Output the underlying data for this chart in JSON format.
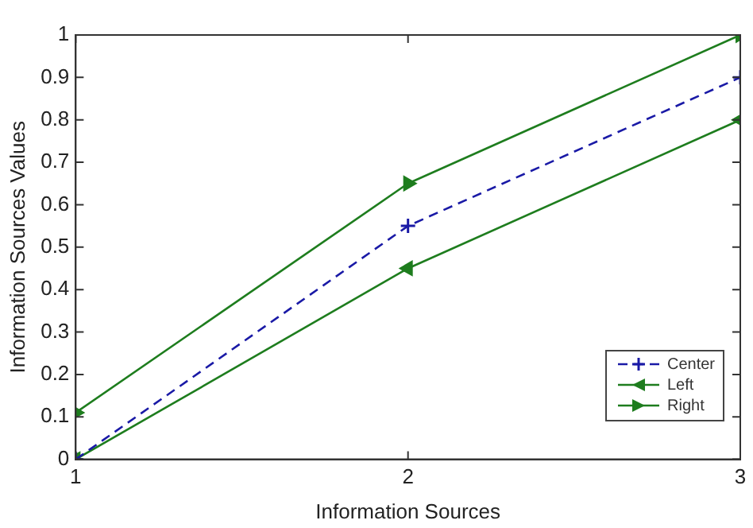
{
  "chart_data": {
    "type": "line",
    "xlabel": "Information Sources",
    "ylabel": "Information Sources Values",
    "x": [
      1,
      2,
      3
    ],
    "xlim": [
      1,
      3
    ],
    "xticks": [
      1,
      2,
      3
    ],
    "ylim": [
      0,
      1
    ],
    "yticks": [
      0,
      0.1,
      0.2,
      0.3,
      0.4,
      0.5,
      0.6,
      0.7,
      0.8,
      0.9,
      1
    ],
    "grid": false,
    "legend": "bottom right",
    "series": [
      {
        "name": "Center",
        "color": "#1a1aa6",
        "values": [
          0,
          0.55,
          0.9
        ],
        "marker": "cross",
        "line_style": "dashed"
      },
      {
        "name": "Left",
        "color": "#1e7d1e",
        "values": [
          0,
          0.45,
          0.8
        ],
        "marker": "triangle",
        "line_style": "solid"
      },
      {
        "name": "Right",
        "color": "#1e7d1e",
        "values": [
          0.11,
          0.65,
          1
        ],
        "marker": "triangle",
        "line_style": "solid"
      }
    ]
  }
}
